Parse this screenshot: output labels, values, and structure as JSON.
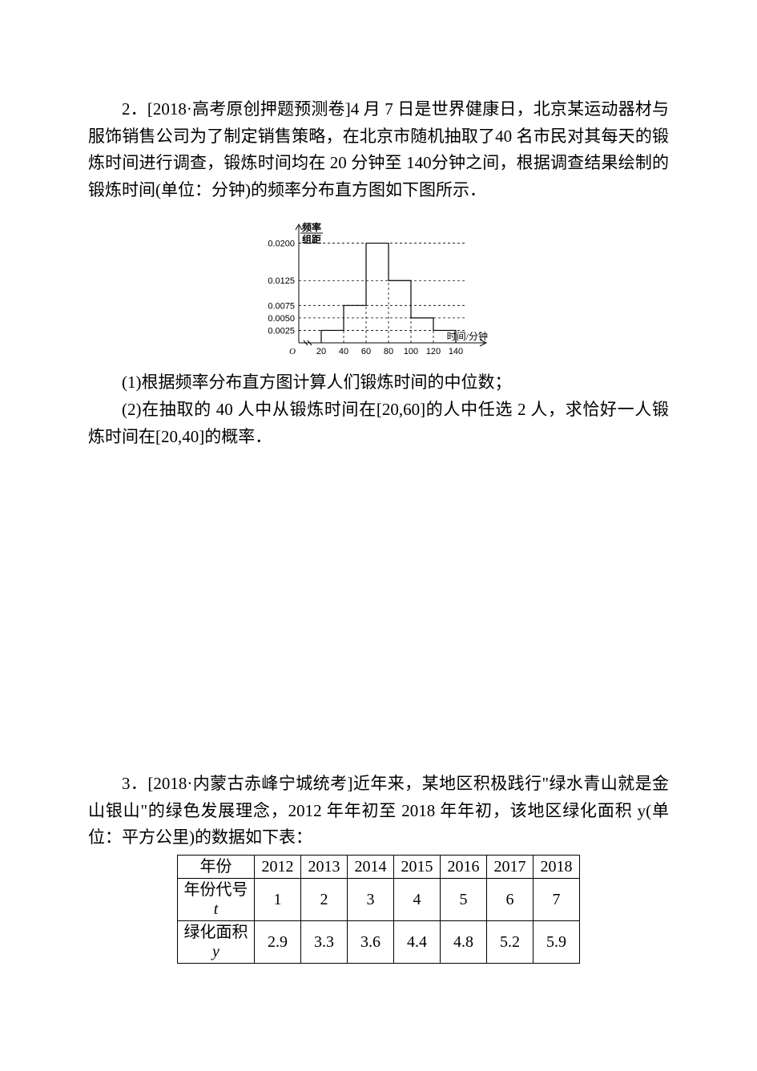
{
  "q2": {
    "line1": "2．[2018·高考原创押题预测卷]4 月 7 日是世界健康日，北京某运动器材与服饰销售公司为了制定销售策略，在北京市随机抽取了40 名市民对其每天的锻炼时间进行调查，锻炼时间均在 20 分钟至 140分钟之间，根据调查结果绘制的锻炼时间(单位：分钟)的频率分布直方图如下图所示．",
    "chart": {
      "type": "histogram",
      "y_label_top": "频率",
      "y_label_bottom": "组距",
      "x_label": "时间/分钟",
      "x_ticks": [
        20,
        40,
        60,
        80,
        100,
        120,
        140
      ],
      "y_ticks": [
        0.0025,
        0.005,
        0.0075,
        0.0125,
        0.02
      ],
      "bars": [
        {
          "x0": 20,
          "x1": 40,
          "h": 0.0025
        },
        {
          "x0": 40,
          "x1": 60,
          "h": 0.0075
        },
        {
          "x0": 60,
          "x1": 80,
          "h": 0.02
        },
        {
          "x0": 80,
          "x1": 100,
          "h": 0.0125
        },
        {
          "x0": 100,
          "x1": 120,
          "h": 0.005
        },
        {
          "x0": 120,
          "x1": 140,
          "h": 0.0025
        }
      ],
      "axis_color": "#000000",
      "line_color": "#000000",
      "dash": "3,3",
      "bg": "#ffffff",
      "label_fontsize": 11
    },
    "sub1": "(1)根据频率分布直方图计算人们锻炼时间的中位数；",
    "sub2": "(2)在抽取的 40 人中从锻炼时间在[20,60]的人中任选 2 人，求恰好一人锻炼时间在[20,40]的概率．"
  },
  "q3": {
    "line1": "3．[2018·内蒙古赤峰宁城统考]近年来，某地区积极践行\"绿水青山就是金山银山\"的绿色发展理念，2012 年年初至 2018 年年初，该地区绿化面积 y(单位：平方公里)的数据如下表：",
    "table": {
      "columns_header": "年份",
      "columns": [
        "2012",
        "2013",
        "2014",
        "2015",
        "2016",
        "2017",
        "2018"
      ],
      "row1_header": "年份代号",
      "row1_sym": "t",
      "row1": [
        "1",
        "2",
        "3",
        "4",
        "5",
        "6",
        "7"
      ],
      "row2_header": "绿化面积",
      "row2_sym": "y",
      "row2": [
        "2.9",
        "3.3",
        "3.6",
        "4.4",
        "4.8",
        "5.2",
        "5.9"
      ],
      "border_color": "#000000",
      "cell_bg": "#ffffff"
    }
  }
}
